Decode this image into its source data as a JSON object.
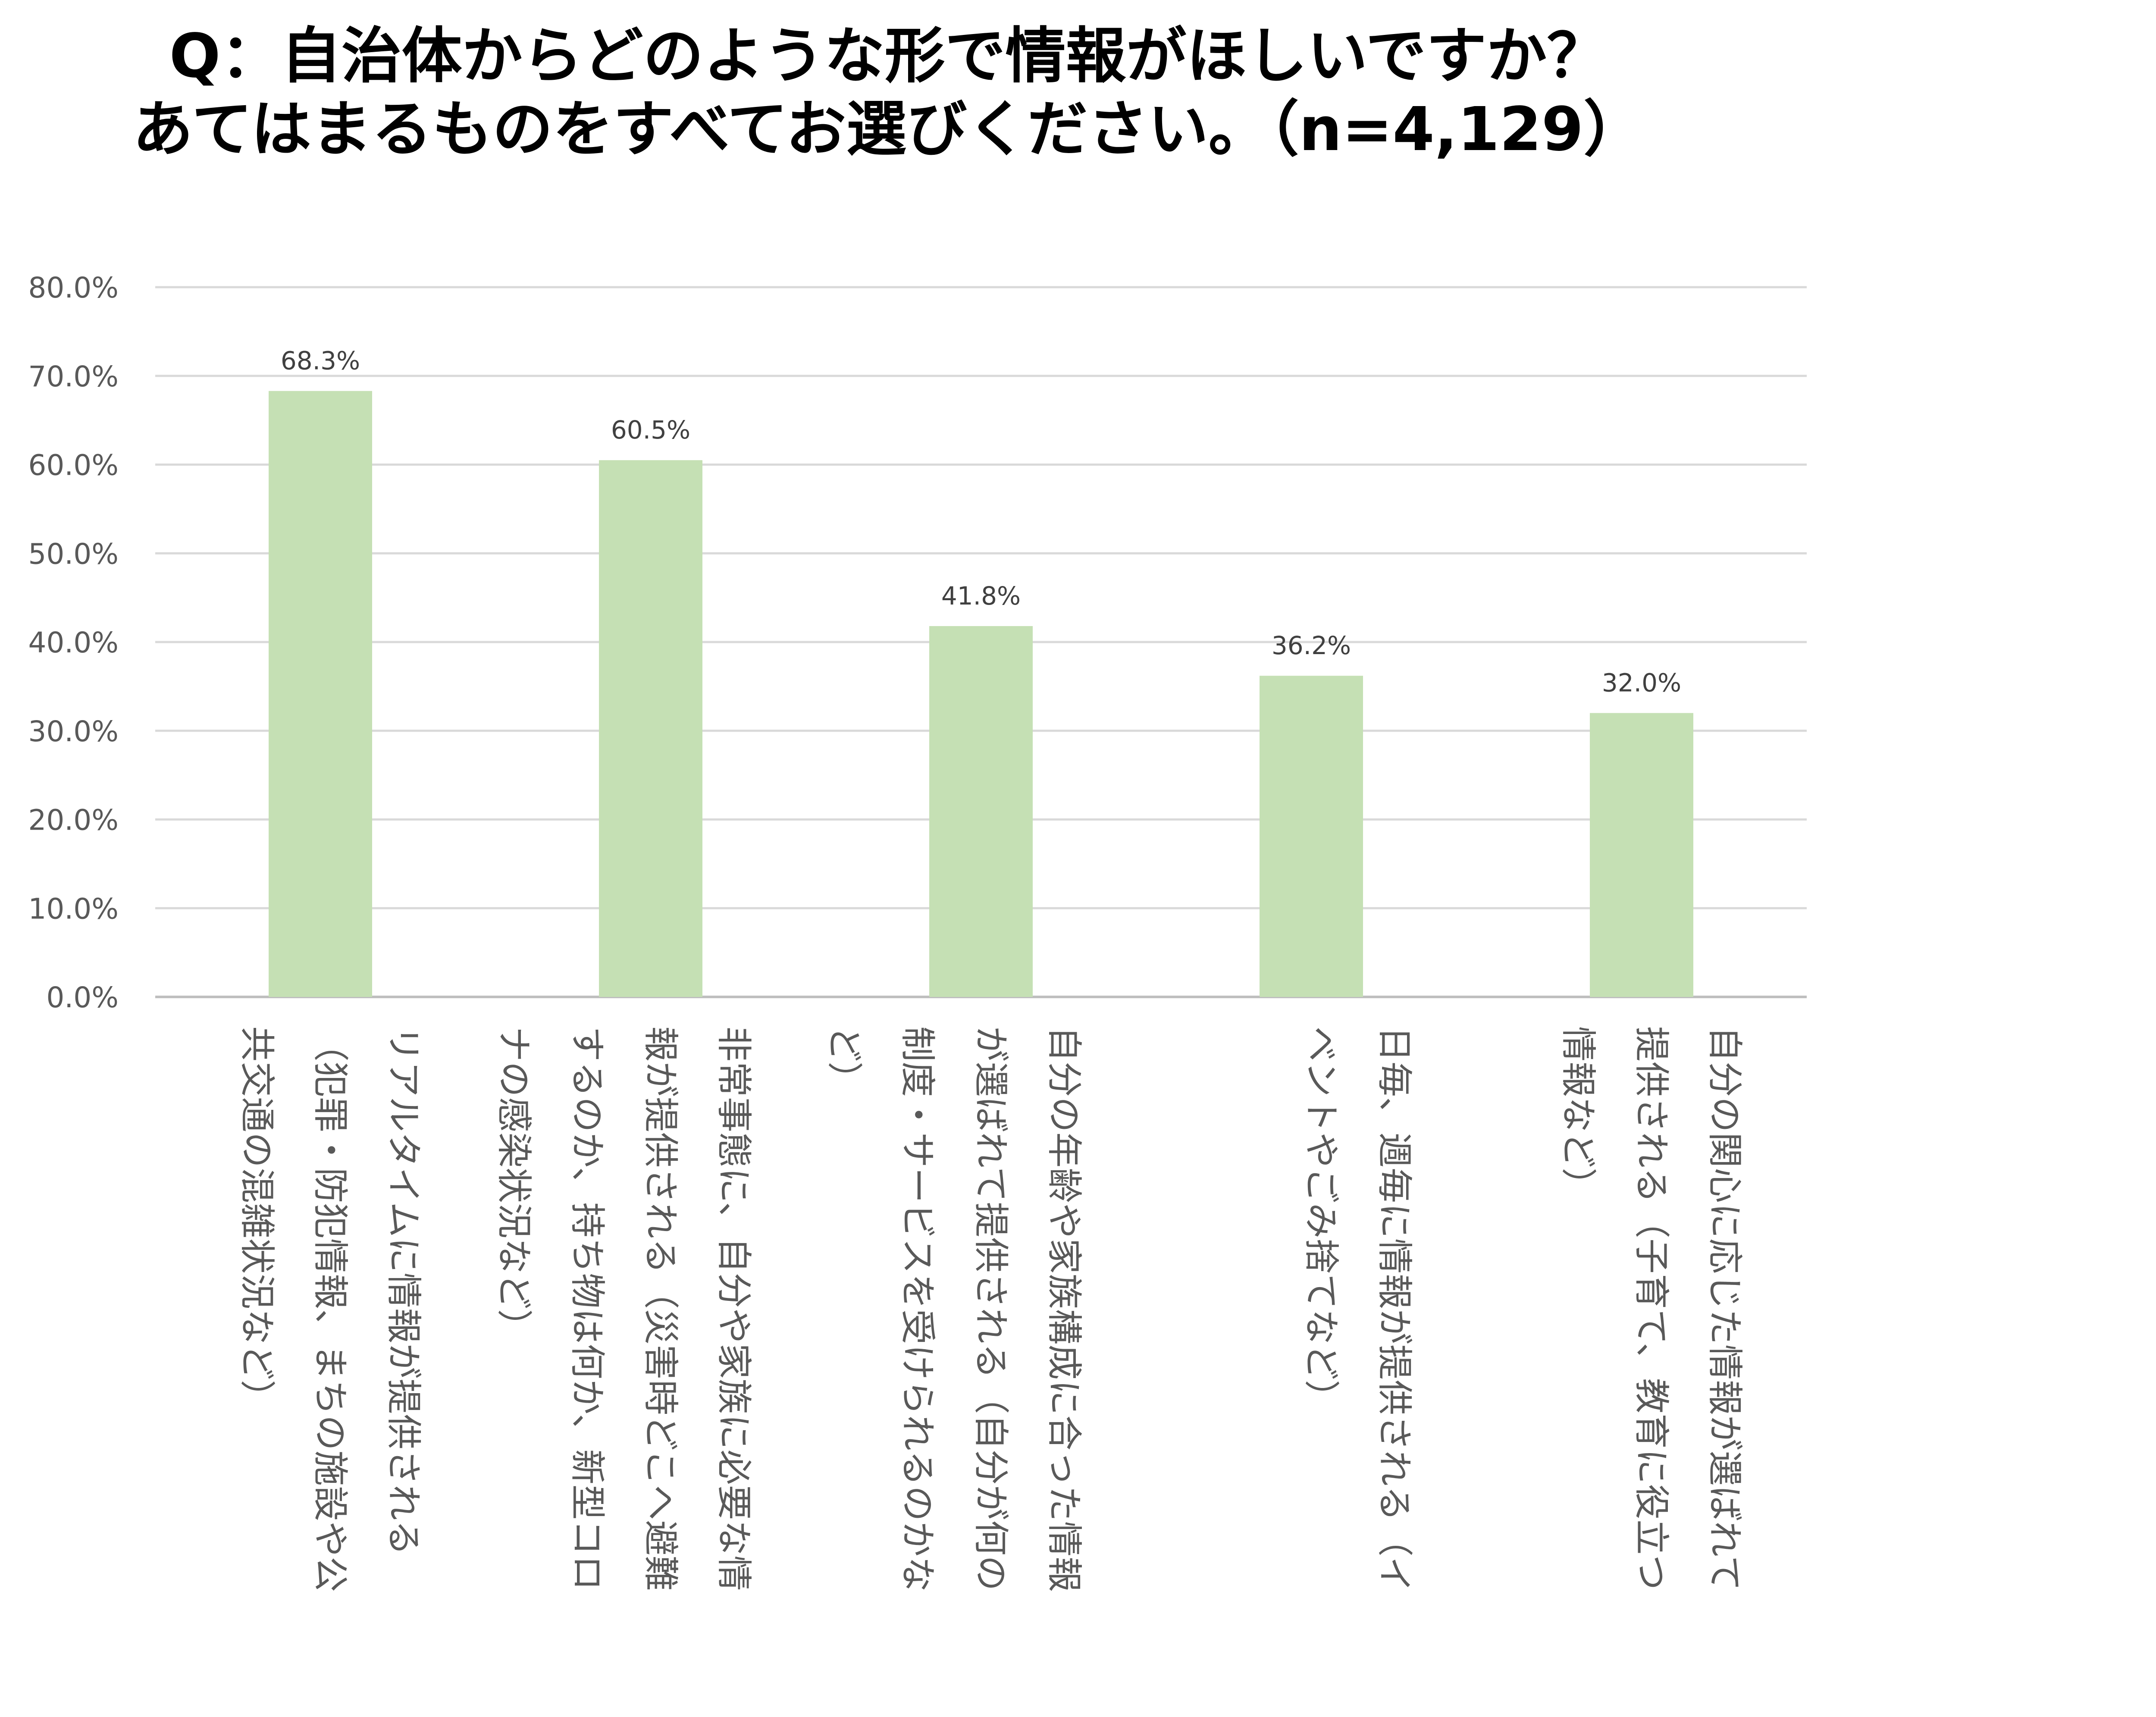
{
  "chart_data": {
    "type": "bar",
    "title": "Q：自治体からどのような形で情報がほしいですか？",
    "subtitle": "あてはまるものをすべてお選びください。（n=4,129）",
    "xlabel": "",
    "ylabel": "",
    "ylim": [
      0,
      80
    ],
    "y_ticks": [
      "0.0%",
      "10.0%",
      "20.0%",
      "30.0%",
      "40.0%",
      "50.0%",
      "60.0%",
      "70.0%",
      "80.0%"
    ],
    "grid": true,
    "legend": "none",
    "bar_color": "#c5e0b4",
    "categories": [
      "リアルタイムに情報が提供される（犯罪・防犯情報、まちの施設や公共交通の混雑状況など）",
      "非常事態に、自分や家族に必要な情報が提供される（災害時どこへ避難するのか、持ち物は何か、新型コロナの感染状況など）",
      "自分の年齢や家族構成に合った情報が選ばれて提供される（自分が何の制度・サービスを受けられるのかなど）",
      "日毎、週毎に情報が提供される（イベントやごみ捨てなど）",
      "自分の関心に応じた情報が選ばれて提供される（子育て、教育に役立つ情報など）"
    ],
    "category_lines": [
      [
        "リアルタイムに情報が提供される",
        "（犯罪・防犯情報、まちの施設や公",
        "共交通の混雑状況など）"
      ],
      [
        "非常事態に、自分や家族に必要な情",
        "報が提供される（災害時どこへ避難",
        "するのか、持ち物は何か、新型コロ",
        "ナの感染状況など）"
      ],
      [
        "自分の年齢や家族構成に合った情報",
        "が選ばれて提供される（自分が何の",
        "制度・サービスを受けられるのかな",
        "ど）"
      ],
      [
        "日毎、週毎に情報が提供される（イ",
        "ベントやごみ捨てなど）"
      ],
      [
        "自分の関心に応じた情報が選ばれて",
        "提供される（子育て、教育に役立つ",
        "情報など）"
      ]
    ],
    "values": [
      68.3,
      60.5,
      41.8,
      36.2,
      32.0
    ],
    "data_labels": [
      "68.3%",
      "60.5%",
      "41.8%",
      "36.2%",
      "32.0%"
    ]
  }
}
